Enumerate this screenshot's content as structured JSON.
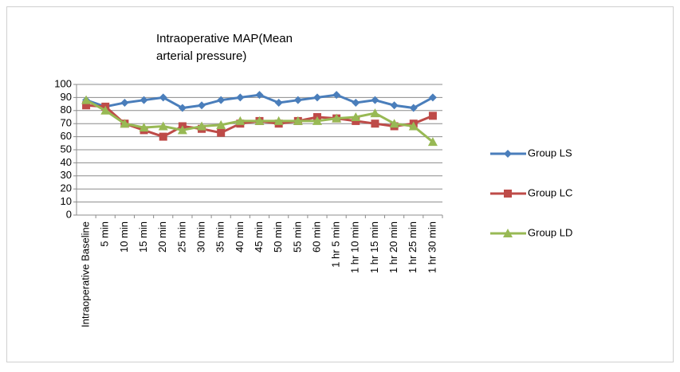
{
  "chart_data": {
    "type": "line",
    "title": "Intraoperative MAP(Mean arterial pressure)",
    "categories": [
      "Intraoperative Baseline",
      "5 min",
      "10 min",
      "15 min",
      "20 min",
      "25 min",
      "30 min",
      "35 min",
      "40 min",
      "45 min",
      "50 min",
      "55 min",
      "60 min",
      "1 hr 5 min",
      "1 hr 10 min",
      "1 hr 15 min",
      "1 hr 20 min",
      "1 hr 25 min",
      "1 hr 30 min"
    ],
    "series": [
      {
        "name": "Group LS",
        "color": "#4a7ebb",
        "marker": "diamond",
        "values": [
          88,
          83,
          86,
          88,
          90,
          82,
          84,
          88,
          90,
          92,
          86,
          88,
          90,
          92,
          86,
          88,
          84,
          82,
          90
        ]
      },
      {
        "name": "Group LC",
        "color": "#be4b48",
        "marker": "square",
        "values": [
          84,
          83,
          70,
          65,
          60,
          68,
          66,
          63,
          70,
          72,
          70,
          72,
          75,
          74,
          72,
          70,
          68,
          70,
          76
        ]
      },
      {
        "name": "Group LD",
        "color": "#98b954",
        "marker": "triangle",
        "values": [
          88,
          80,
          70,
          67,
          68,
          65,
          68,
          69,
          72,
          72,
          72,
          72,
          72,
          74,
          75,
          78,
          70,
          68,
          56
        ]
      }
    ],
    "ylim": [
      0,
      100
    ],
    "yticks": [
      0,
      10,
      20,
      30,
      40,
      50,
      60,
      70,
      80,
      90,
      100
    ],
    "grid": true,
    "legend": "right"
  }
}
